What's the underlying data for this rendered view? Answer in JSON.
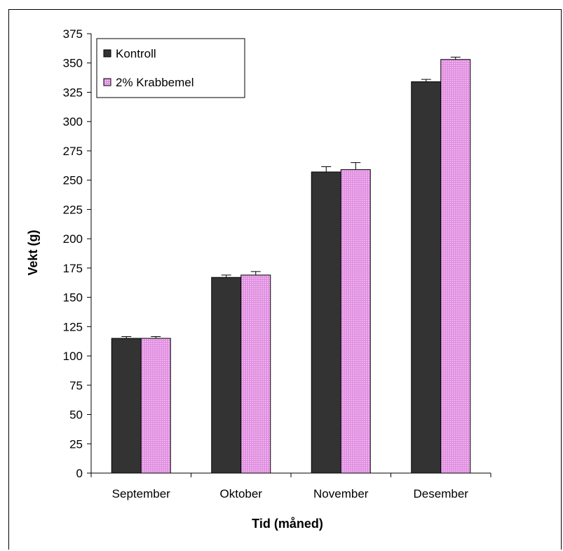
{
  "chart_data": {
    "type": "bar",
    "title": "",
    "xlabel": "Tid (måned)",
    "ylabel": "Vekt (g)",
    "categories": [
      "September",
      "Oktober",
      "November",
      "Desember"
    ],
    "series": [
      {
        "name": "Kontroll",
        "color": "#333333",
        "pattern": "solid",
        "values": [
          115,
          167,
          257,
          334
        ],
        "errors": [
          1.5,
          2,
          4.5,
          2
        ]
      },
      {
        "name": "2%  Krabbemel",
        "color": "#e08ee0",
        "pattern": "dotted",
        "values": [
          115,
          169,
          259,
          353
        ],
        "errors": [
          1.5,
          3,
          6,
          2
        ]
      }
    ],
    "ylim": [
      0,
      375
    ],
    "yticks": [
      0,
      25,
      50,
      75,
      100,
      125,
      150,
      175,
      200,
      225,
      250,
      275,
      300,
      325,
      350,
      375
    ],
    "grid": false,
    "legend_position": "top-left"
  }
}
